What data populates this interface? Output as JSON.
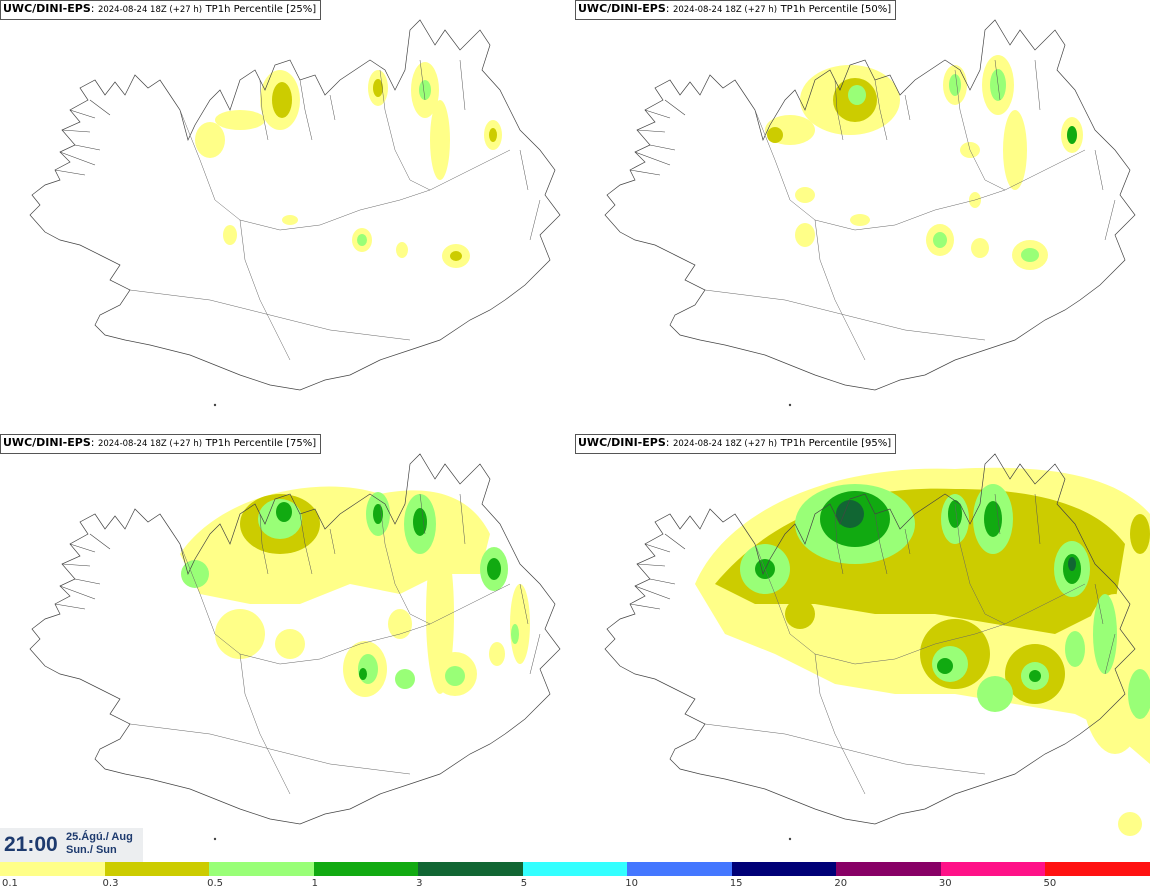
{
  "panels": [
    {
      "model": "UWC/DINI-EPS",
      "run": "2024-08-24 18Z (+27 h)",
      "product": "TP1h Percentile [25%]"
    },
    {
      "model": "UWC/DINI-EPS",
      "run": "2024-08-24 18Z (+27 h)",
      "product": "TP1h Percentile [50%]"
    },
    {
      "model": "UWC/DINI-EPS",
      "run": "2024-08-24 18Z (+27 h)",
      "product": "TP1h Percentile [75%]"
    },
    {
      "model": "UWC/DINI-EPS",
      "run": "2024-08-24 18Z (+27 h)",
      "product": "TP1h Percentile [95%]"
    }
  ],
  "valid_time": {
    "time": "21:00",
    "date": "25.Ágú./ Aug",
    "day": "Sun./ Sun"
  },
  "legend": {
    "colors": [
      "#ffff88",
      "#cccc00",
      "#99ff77",
      "#11aa11",
      "#116633",
      "#33ffff",
      "#4477ff",
      "#000077",
      "#880066",
      "#ff1188",
      "#ff1111"
    ],
    "labels": [
      "0.1",
      "0.3",
      "0.5",
      "1",
      "3",
      "5",
      "10",
      "15",
      "20",
      "30",
      "50"
    ]
  }
}
